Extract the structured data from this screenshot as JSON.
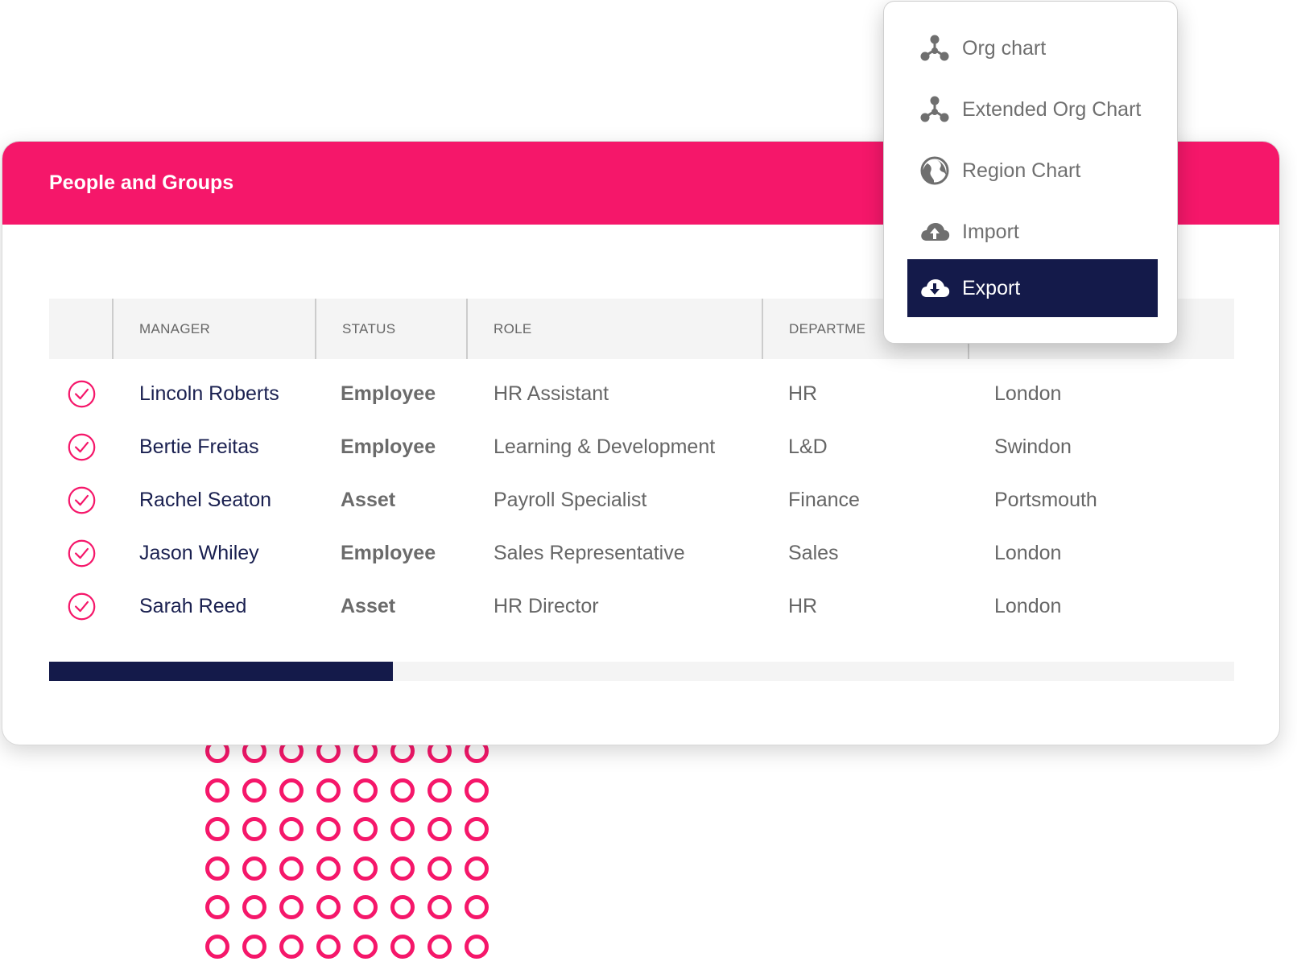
{
  "colors": {
    "accent": "#f5176a",
    "navy": "#141a4a",
    "text_gray": "#666666"
  },
  "card": {
    "title": "People and Groups"
  },
  "table": {
    "headers": [
      "MANAGER",
      "STATUS",
      "ROLE",
      "DEPARTME"
    ],
    "rows": [
      {
        "manager": "Lincoln Roberts",
        "status": "Employee",
        "role": "HR Assistant",
        "department": "HR",
        "location": "London"
      },
      {
        "manager": "Bertie Freitas",
        "status": "Employee",
        "role": "Learning & Development",
        "department": "L&D",
        "location": "Swindon"
      },
      {
        "manager": "Rachel Seaton",
        "status": "Asset",
        "role": "Payroll Specialist",
        "department": "Finance",
        "location": "Portsmouth"
      },
      {
        "manager": "Jason Whiley",
        "status": "Employee",
        "role": "Sales Representative",
        "department": "Sales",
        "location": "London"
      },
      {
        "manager": "Sarah Reed",
        "status": "Asset",
        "role": "HR Director",
        "department": "HR",
        "location": "London"
      }
    ],
    "row_icon": "check-circle-icon",
    "scroll_position": 0.29
  },
  "menu": {
    "items": [
      {
        "label": "Org chart",
        "icon": "org-chart-icon",
        "active": false
      },
      {
        "label": "Extended Org Chart",
        "icon": "org-chart-icon",
        "active": false
      },
      {
        "label": "Region Chart",
        "icon": "globe-icon",
        "active": false
      },
      {
        "label": "Import",
        "icon": "cloud-upload-icon",
        "active": false
      },
      {
        "label": "Export",
        "icon": "cloud-download-icon",
        "active": true
      }
    ]
  }
}
